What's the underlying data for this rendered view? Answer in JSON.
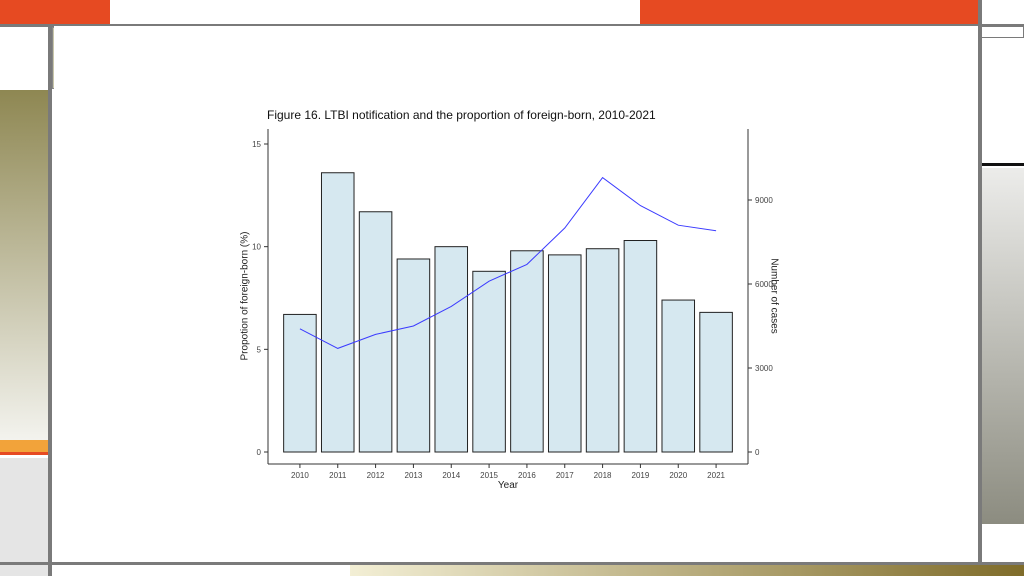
{
  "chart_data": {
    "type": "bar",
    "title": "Figure 16. LTBI notification and the proportion of foreign-born, 2010-2021",
    "xlabel": "Year",
    "ylabel": "Propotion of foreign-born (%)",
    "y2label": "Number of cases",
    "categories": [
      "2010",
      "2011",
      "2012",
      "2013",
      "2014",
      "2015",
      "2016",
      "2017",
      "2018",
      "2019",
      "2020",
      "2021"
    ],
    "ylim": [
      0,
      15
    ],
    "y2lim": [
      0,
      11000
    ],
    "yticks": [
      0,
      5,
      10,
      15
    ],
    "y2ticks": [
      0,
      3000,
      6000,
      9000
    ],
    "series": [
      {
        "type": "bar",
        "axis": "left",
        "values": [
          6.7,
          13.6,
          11.7,
          9.4,
          10.0,
          8.8,
          9.8,
          9.6,
          9.9,
          10.3,
          7.4,
          6.8
        ]
      },
      {
        "type": "line",
        "axis": "right",
        "values": [
          4400,
          3700,
          4200,
          4500,
          5200,
          6100,
          6700,
          8000,
          9800,
          8800,
          8100,
          7900
        ]
      }
    ],
    "grid": false,
    "colors": {
      "bar_fill": "#d6e8f0",
      "bar_stroke": "#222222",
      "line": "#3b3bff"
    }
  }
}
